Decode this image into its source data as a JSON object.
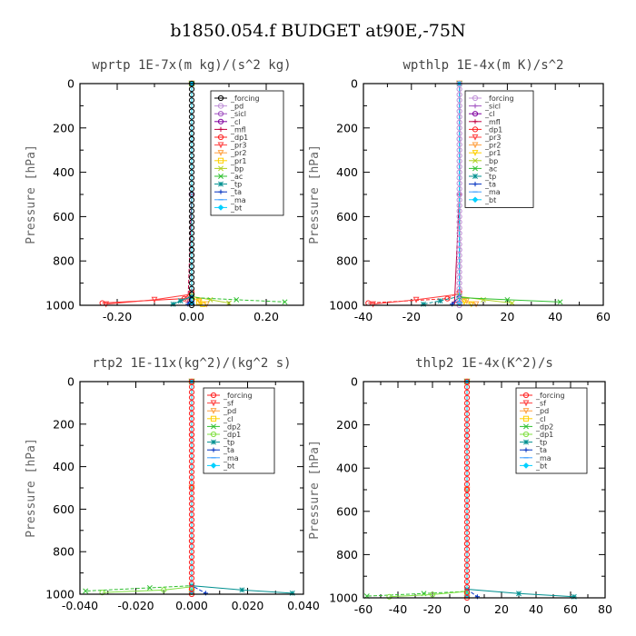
{
  "figure": {
    "title": "b1850.054.f  BUDGET at90E,-75N"
  },
  "chart_data": [
    {
      "type": "line",
      "title": "wprtp  1E-7x(m kg)/(s^2 kg)",
      "ylabel": "Pressure [hPa]",
      "xlim": [
        -0.3,
        0.3
      ],
      "ylim": [
        1000,
        0
      ],
      "xticks": [
        -0.2,
        0.0,
        0.2
      ],
      "xtick_labels": [
        "-0.20",
        "0.00",
        "0.20"
      ],
      "yticks": [
        0,
        200,
        400,
        600,
        800,
        1000
      ],
      "ytick_labels": [
        "0",
        "200",
        "400",
        "600",
        "800",
        "1000"
      ],
      "legend_position": "top-right",
      "series": [
        {
          "name": "_forcing",
          "color": "#000000",
          "marker": "circle",
          "x": [
            0,
            0,
            0,
            0,
            0
          ],
          "y": [
            0,
            250,
            500,
            750,
            990
          ]
        },
        {
          "name": "_pd",
          "color": "#c090d8",
          "marker": "circle",
          "x": [
            0,
            0,
            0
          ],
          "y": [
            0,
            500,
            990
          ]
        },
        {
          "name": "_sicl",
          "color": "#a050c0",
          "marker": "circle",
          "x": [
            0,
            0,
            0
          ],
          "y": [
            0,
            500,
            990
          ]
        },
        {
          "name": "_cl",
          "color": "#8000a0",
          "marker": "circle",
          "x": [
            0,
            0,
            0
          ],
          "y": [
            0,
            500,
            990
          ]
        },
        {
          "name": "_mfl",
          "color": "#c00040",
          "marker": "plus",
          "x": [
            0,
            0,
            -0.01
          ],
          "y": [
            0,
            500,
            985
          ]
        },
        {
          "name": "_dp1",
          "color": "#ff2020",
          "marker": "circle",
          "x": [
            0,
            0,
            -0.02,
            -0.24
          ],
          "y": [
            0,
            940,
            970,
            990
          ]
        },
        {
          "name": "_pr3",
          "color": "#ff4040",
          "marker": "triangle",
          "x": [
            0,
            0,
            -0.1,
            -0.23
          ],
          "y": [
            0,
            950,
            975,
            995
          ]
        },
        {
          "name": "_pr2",
          "color": "#ffa040",
          "marker": "triangle",
          "x": [
            0,
            0,
            0.02,
            0.04
          ],
          "y": [
            0,
            960,
            980,
            995
          ]
        },
        {
          "name": "_pr1",
          "color": "#ffd000",
          "marker": "square",
          "x": [
            0,
            0,
            0.02,
            0.03
          ],
          "y": [
            0,
            960,
            985,
            995
          ]
        },
        {
          "name": "_bp",
          "color": "#b0d020",
          "marker": "cross",
          "x": [
            0,
            0,
            0.05,
            0.1
          ],
          "y": [
            0,
            960,
            975,
            990
          ]
        },
        {
          "name": "_ac",
          "color": "#30c030",
          "marker": "cross",
          "x": [
            0,
            0,
            0.12,
            0.25
          ],
          "y": [
            0,
            965,
            975,
            985
          ]
        },
        {
          "name": "_tp",
          "color": "#009090",
          "marker": "star",
          "x": [
            0,
            0,
            -0.03,
            -0.05
          ],
          "y": [
            0,
            960,
            980,
            995
          ]
        },
        {
          "name": "_ta",
          "color": "#0030c0",
          "marker": "plus",
          "x": [
            0,
            0,
            -0.01
          ],
          "y": [
            0,
            960,
            995
          ]
        },
        {
          "name": "_ma",
          "color": "#40a0ff",
          "marker": "dash",
          "x": [
            0,
            0
          ],
          "y": [
            0,
            990
          ]
        },
        {
          "name": "_bt",
          "color": "#00d0ff",
          "marker": "diamond",
          "x": [
            0,
            0
          ],
          "y": [
            0,
            990
          ]
        }
      ]
    },
    {
      "type": "line",
      "title": "wpthlp  1E-4x(m K)/s^2",
      "ylabel": "Pressure [hPa]",
      "xlim": [
        -40,
        60
      ],
      "ylim": [
        1000,
        0
      ],
      "xticks": [
        -40,
        -20,
        0,
        20,
        40,
        60
      ],
      "xtick_labels": [
        "-40",
        "-20",
        "0",
        "20",
        "40",
        "60"
      ],
      "yticks": [
        0,
        200,
        400,
        600,
        800,
        1000
      ],
      "ytick_labels": [
        "0",
        "200",
        "400",
        "600",
        "800",
        "1000"
      ],
      "legend_position": "top-right",
      "series": [
        {
          "name": "_forcing",
          "color": "#c090d8",
          "marker": "circle",
          "x": [
            0,
            0,
            0,
            0,
            0
          ],
          "y": [
            0,
            250,
            500,
            750,
            990
          ]
        },
        {
          "name": "_sicl",
          "color": "#a050c0",
          "marker": "plus",
          "x": [
            0,
            0,
            0
          ],
          "y": [
            0,
            500,
            990
          ]
        },
        {
          "name": "_cl",
          "color": "#8000a0",
          "marker": "circle",
          "x": [
            0,
            0,
            0
          ],
          "y": [
            0,
            500,
            990
          ]
        },
        {
          "name": "_mfl",
          "color": "#c00040",
          "marker": "plus",
          "x": [
            0,
            0,
            -2
          ],
          "y": [
            0,
            500,
            985
          ]
        },
        {
          "name": "_dp1",
          "color": "#ff2020",
          "marker": "circle",
          "x": [
            0,
            0,
            -5,
            -38
          ],
          "y": [
            0,
            940,
            970,
            990
          ]
        },
        {
          "name": "_pr3",
          "color": "#ff4040",
          "marker": "triangle",
          "x": [
            0,
            0,
            -18,
            -36
          ],
          "y": [
            0,
            950,
            975,
            995
          ]
        },
        {
          "name": "_pr2",
          "color": "#ffa040",
          "marker": "triangle",
          "x": [
            0,
            0,
            3,
            7
          ],
          "y": [
            0,
            960,
            980,
            995
          ]
        },
        {
          "name": "_pr1",
          "color": "#ffd000",
          "marker": "triangle",
          "x": [
            0,
            0,
            2,
            5
          ],
          "y": [
            0,
            960,
            985,
            995
          ]
        },
        {
          "name": "_bp",
          "color": "#b0d020",
          "marker": "cross",
          "x": [
            0,
            0,
            10,
            22
          ],
          "y": [
            0,
            960,
            975,
            990
          ]
        },
        {
          "name": "_ac",
          "color": "#30c030",
          "marker": "cross",
          "x": [
            0,
            0,
            20,
            42
          ],
          "y": [
            0,
            965,
            975,
            985
          ]
        },
        {
          "name": "_tp",
          "color": "#009090",
          "marker": "star",
          "x": [
            0,
            0,
            -8,
            -15
          ],
          "y": [
            0,
            960,
            980,
            995
          ]
        },
        {
          "name": "_ta",
          "color": "#0030c0",
          "marker": "plus",
          "x": [
            0,
            0,
            -3
          ],
          "y": [
            0,
            960,
            995
          ]
        },
        {
          "name": "_ma",
          "color": "#40a0ff",
          "marker": "dash",
          "x": [
            0,
            0
          ],
          "y": [
            0,
            990
          ]
        },
        {
          "name": "_bt",
          "color": "#00d0ff",
          "marker": "diamond",
          "x": [
            0,
            0
          ],
          "y": [
            0,
            990
          ]
        }
      ]
    },
    {
      "type": "line",
      "title": "rtp2  1E-11x(kg^2)/(kg^2 s)",
      "ylabel": "Pressure [hPa]",
      "xlim": [
        -0.04,
        0.04
      ],
      "ylim": [
        1000,
        0
      ],
      "xticks": [
        -0.04,
        -0.02,
        0.0,
        0.02,
        0.04
      ],
      "xtick_labels": [
        "-0.040",
        "-0.020",
        "0.000",
        "0.020",
        "0.040"
      ],
      "yticks": [
        0,
        200,
        400,
        600,
        800,
        1000
      ],
      "ytick_labels": [
        "0",
        "200",
        "400",
        "600",
        "800",
        "1000"
      ],
      "legend_position": "top-right",
      "series": [
        {
          "name": "_forcing",
          "color": "#ff2020",
          "marker": "circle",
          "x": [
            0,
            0,
            0,
            0,
            0
          ],
          "y": [
            0,
            250,
            500,
            750,
            990
          ]
        },
        {
          "name": "_sf",
          "color": "#ff4040",
          "marker": "triangle",
          "x": [
            0,
            0,
            0
          ],
          "y": [
            0,
            500,
            990
          ]
        },
        {
          "name": "_pd",
          "color": "#ffa040",
          "marker": "triangle",
          "x": [
            0,
            0,
            0
          ],
          "y": [
            0,
            500,
            990
          ]
        },
        {
          "name": "_cl",
          "color": "#ffd000",
          "marker": "square",
          "x": [
            0,
            0
          ],
          "y": [
            0,
            990
          ]
        },
        {
          "name": "_dp2",
          "color": "#30c030",
          "marker": "cross",
          "x": [
            0,
            0,
            -0.015,
            -0.038
          ],
          "y": [
            0,
            960,
            970,
            985
          ]
        },
        {
          "name": "_dp1",
          "color": "#80e040",
          "marker": "circle",
          "x": [
            0,
            0,
            -0.01,
            -0.032
          ],
          "y": [
            0,
            965,
            980,
            992
          ]
        },
        {
          "name": "_tp",
          "color": "#009090",
          "marker": "star",
          "x": [
            0,
            0,
            0.018,
            0.036
          ],
          "y": [
            0,
            960,
            980,
            995
          ]
        },
        {
          "name": "_ta",
          "color": "#0030c0",
          "marker": "plus",
          "x": [
            0,
            0,
            0.005
          ],
          "y": [
            0,
            960,
            995
          ]
        },
        {
          "name": "_ma",
          "color": "#40a0ff",
          "marker": "dash",
          "x": [
            0,
            0
          ],
          "y": [
            0,
            990
          ]
        },
        {
          "name": "_bt",
          "color": "#00d0ff",
          "marker": "diamond",
          "x": [
            0,
            0
          ],
          "y": [
            0,
            990
          ]
        }
      ]
    },
    {
      "type": "line",
      "title": "thlp2  1E-4x(K^2)/s",
      "ylabel": "Pressure [hPa]",
      "xlim": [
        -60,
        80
      ],
      "ylim": [
        1000,
        0
      ],
      "xticks": [
        -60,
        -40,
        -20,
        0,
        20,
        40,
        60,
        80
      ],
      "xtick_labels": [
        "-60",
        "-40",
        "-20",
        "0",
        "20",
        "40",
        "60",
        "80"
      ],
      "yticks": [
        0,
        200,
        400,
        600,
        800,
        1000
      ],
      "ytick_labels": [
        "0",
        "200",
        "400",
        "600",
        "800",
        "1000"
      ],
      "legend_position": "top-right",
      "series": [
        {
          "name": "_forcing",
          "color": "#ff2020",
          "marker": "circle",
          "x": [
            0,
            0,
            0,
            0,
            0
          ],
          "y": [
            0,
            250,
            500,
            750,
            990
          ]
        },
        {
          "name": "_sf",
          "color": "#ff4040",
          "marker": "triangle",
          "x": [
            0,
            0,
            0
          ],
          "y": [
            0,
            500,
            990
          ]
        },
        {
          "name": "_pd",
          "color": "#ffa040",
          "marker": "triangle",
          "x": [
            0,
            0,
            0
          ],
          "y": [
            0,
            500,
            990
          ]
        },
        {
          "name": "_cl",
          "color": "#ffd000",
          "marker": "square",
          "x": [
            0,
            0
          ],
          "y": [
            0,
            990
          ]
        },
        {
          "name": "_dp2",
          "color": "#30c030",
          "marker": "cross",
          "x": [
            0,
            0,
            -25,
            -58
          ],
          "y": [
            0,
            970,
            980,
            992
          ]
        },
        {
          "name": "_dp1",
          "color": "#80e040",
          "marker": "circle",
          "x": [
            0,
            0,
            -20,
            -45
          ],
          "y": [
            0,
            970,
            985,
            995
          ]
        },
        {
          "name": "_tp",
          "color": "#009090",
          "marker": "star",
          "x": [
            0,
            0,
            30,
            62
          ],
          "y": [
            0,
            960,
            980,
            995
          ]
        },
        {
          "name": "_ta",
          "color": "#0030c0",
          "marker": "plus",
          "x": [
            0,
            0,
            6
          ],
          "y": [
            0,
            960,
            995
          ]
        },
        {
          "name": "_ma",
          "color": "#40a0ff",
          "marker": "dash",
          "x": [
            0,
            0
          ],
          "y": [
            0,
            990
          ]
        },
        {
          "name": "_bt",
          "color": "#00d0ff",
          "marker": "diamond",
          "x": [
            0,
            0
          ],
          "y": [
            0,
            990
          ]
        }
      ]
    }
  ]
}
